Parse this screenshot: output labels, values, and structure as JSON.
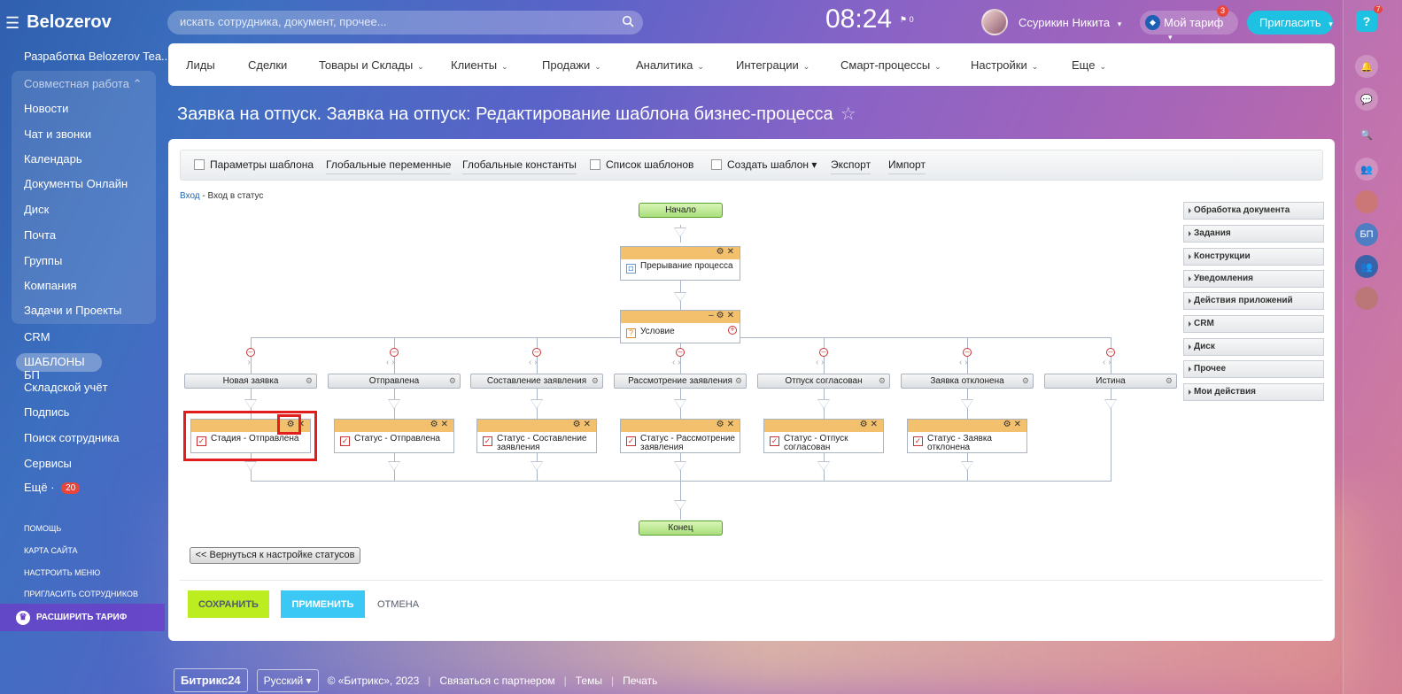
{
  "sidebar": {
    "logo": "Belozerov",
    "portal": "Разработка Belozerov Tea...",
    "group_title": "Совместная работа",
    "group_items": [
      "Новости",
      "Чат и звонки",
      "Календарь",
      "Документы Онлайн",
      "Диск",
      "Почта",
      "Группы",
      "Компания",
      "Задачи и Проекты"
    ],
    "crm": "CRM",
    "active": "ШАБЛОНЫ БП",
    "after_items": [
      "Складской учёт",
      "Подпись",
      "Поиск сотрудника",
      "Сервисы"
    ],
    "more": "Ещё",
    "more_count": "20",
    "small_links": [
      "ПОМОЩЬ",
      "КАРТА САЙТА",
      "НАСТРОИТЬ МЕНЮ",
      "ПРИГЛАСИТЬ СОТРУДНИКОВ"
    ],
    "expand": "РАСШИРИТЬ ТАРИФ"
  },
  "header": {
    "search_placeholder": "искать сотрудника, документ, прочее...",
    "time": "08:24",
    "flag_count": "0",
    "user": "Ссурикин Никита",
    "tariff": "Мой тариф",
    "tariff_badge": "3",
    "invite": "Пригласить",
    "help_badge": "7"
  },
  "right_strip": {
    "bp_initials": "БП"
  },
  "nav": [
    "Лиды",
    "Сделки",
    "Товары и Склады",
    "Клиенты",
    "Продажи",
    "Аналитика",
    "Интеграции",
    "Смарт-процессы",
    "Настройки",
    "Еще"
  ],
  "page_title": "Заявка на отпуск. Заявка на отпуск: Редактирование шаблона бизнес-процесса",
  "toolbar": {
    "params": "Параметры шаблона",
    "global_vars": "Глобальные переменные",
    "global_consts": "Глобальные константы",
    "list": "Список шаблонов",
    "create": "Создать шаблон",
    "export": "Экспорт",
    "import": "Импорт"
  },
  "breadcrumb": {
    "link": "Вход",
    "current": "- Вход в статус"
  },
  "diagram": {
    "start": "Начало",
    "end": "Конец",
    "interrupt": "Прерывание процесса",
    "condition": "Условие",
    "branches": [
      "Новая заявка",
      "Отправлена",
      "Составление заявления",
      "Рассмотрение заявления",
      "Отпуск согласован",
      "Заявка отклонена",
      "Истина"
    ],
    "actions": [
      "Стадия - Отправлена",
      "Статус - Отправлена",
      "Статус - Составление заявления",
      "Статус - Рассмотрение заявления",
      "Статус - Отпуск согласован",
      "Статус - Заявка отклонена"
    ]
  },
  "palette": [
    "Обработка документа",
    "Задания",
    "Конструкции",
    "Уведомления",
    "Действия приложений",
    "CRM",
    "Диск",
    "Прочее",
    "Мои действия"
  ],
  "buttons": {
    "back": "<< Вернуться к настройке статусов",
    "save": "СОХРАНИТЬ",
    "apply": "ПРИМЕНИТЬ",
    "cancel": "ОТМЕНА"
  },
  "footer": {
    "brand": "Битрикс24",
    "lang": "Русский",
    "copyright": "© «Битрикс», 2023",
    "partner": "Связаться с партнером",
    "themes": "Темы",
    "print": "Печать"
  },
  "colors": {
    "accent": "#1fc1e3",
    "save": "#bbed21",
    "apply": "#3bc8f5",
    "highlight": "#e21d1d",
    "action_header": "#f3c06d"
  }
}
